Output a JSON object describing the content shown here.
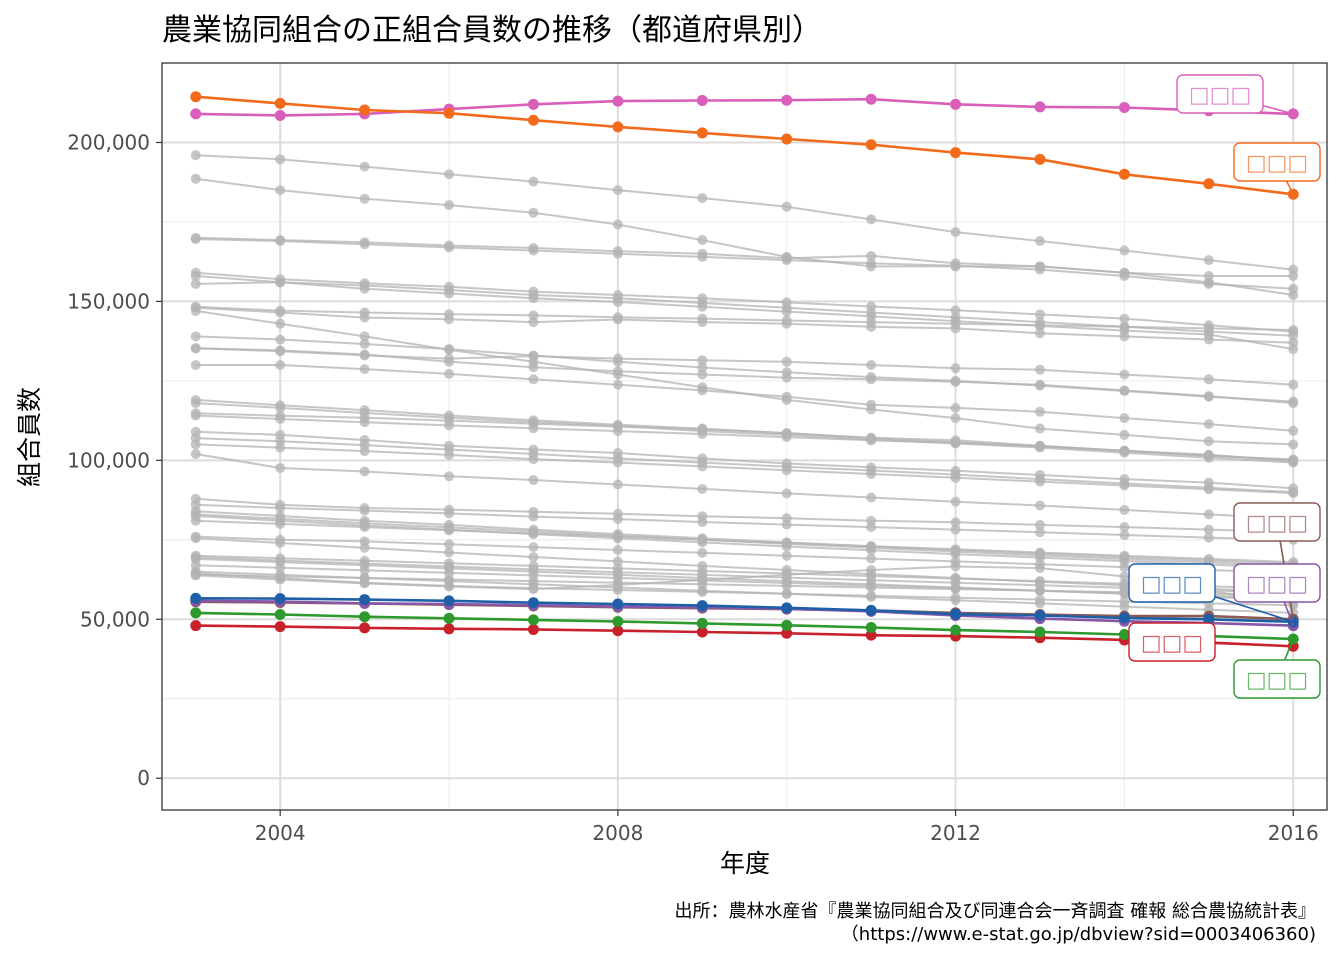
{
  "chart_data": {
    "type": "line",
    "title": "農業協同組合の正組合員数の推移（都道府県別）",
    "xlabel": "年度",
    "ylabel": "組合員数",
    "caption": [
      "出所：農林水産省『農業協同組合及び同連合会一斉調査 確報 総合農協統計表』",
      "（https://www.e-stat.go.jp/dbview?sid=0003406360)"
    ],
    "x": [
      2003,
      2004,
      2005,
      2006,
      2007,
      2008,
      2009,
      2010,
      2011,
      2012,
      2013,
      2014,
      2015,
      2016
    ],
    "xlim": [
      2002.6,
      2016.4
    ],
    "ylim": [
      -10000,
      225000
    ],
    "xticks": [
      {
        "value": 2004,
        "label": "2004"
      },
      {
        "value": 2008,
        "label": "2008"
      },
      {
        "value": 2012,
        "label": "2012"
      },
      {
        "value": 2016,
        "label": "2016"
      }
    ],
    "yticks": [
      {
        "value": 0,
        "label": "0"
      },
      {
        "value": 50000,
        "label": "50,000"
      },
      {
        "value": 100000,
        "label": "100,000"
      },
      {
        "value": 150000,
        "label": "150,000"
      },
      {
        "value": 200000,
        "label": "200,000"
      }
    ],
    "grid": true,
    "background_series_color": "#b3b3b3",
    "highlight_series": [
      {
        "color": "#d95fba",
        "label": "□□□",
        "values": [
          209000,
          208500,
          209000,
          210500,
          212000,
          213000,
          213200,
          213300,
          213600,
          212000,
          211200,
          211000,
          210000,
          209000
        ]
      },
      {
        "color": "#f26b1d",
        "label": "□□□",
        "values": [
          214400,
          212300,
          210200,
          209200,
          207000,
          204900,
          203000,
          201100,
          199300,
          196800,
          194700,
          190000,
          187000,
          183700
        ]
      },
      {
        "color": "#8b5a55",
        "label": "□□□",
        "values": [
          55500,
          55300,
          55000,
          54600,
          54200,
          53800,
          53500,
          53200,
          52800,
          52000,
          51500,
          51000,
          51000,
          50000
        ]
      },
      {
        "color": "#8856a7",
        "label": "□□□",
        "values": [
          55800,
          55600,
          55000,
          54800,
          54400,
          54000,
          53700,
          53300,
          52500,
          51200,
          50200,
          49400,
          48800,
          48000
        ]
      },
      {
        "color": "#1f5fa8",
        "label": "□□□",
        "values": [
          56600,
          56500,
          56200,
          55800,
          55200,
          54800,
          54300,
          53600,
          52800,
          51600,
          51200,
          50400,
          50000,
          49200
        ]
      },
      {
        "color": "#c9212b",
        "label": "□□□",
        "values": [
          48000,
          47700,
          47300,
          47000,
          46800,
          46400,
          46000,
          45600,
          45000,
          44700,
          44200,
          43500,
          42700,
          41500
        ]
      },
      {
        "color": "#2e9a2e",
        "label": "□□□",
        "values": [
          52000,
          51500,
          50800,
          50300,
          49800,
          49300,
          48700,
          48100,
          47400,
          46600,
          46000,
          45200,
          44700,
          43800
        ]
      }
    ],
    "background_series": [
      {
        "values": [
          196000,
          194700,
          192400,
          190000,
          187700,
          185000,
          182500,
          179800,
          175800,
          171800,
          169000,
          166000,
          163000,
          160000
        ]
      },
      {
        "values": [
          188600,
          185000,
          182300,
          180300,
          177900,
          174200,
          169300,
          164000,
          161000,
          161000,
          161000,
          159000,
          158000,
          158000
        ]
      },
      {
        "values": [
          170000,
          169300,
          168600,
          167600,
          166800,
          165800,
          165000,
          163600,
          164300,
          162000,
          161000,
          159000,
          156000,
          152000
        ]
      },
      {
        "values": [
          169600,
          169000,
          168000,
          167000,
          166000,
          165000,
          164000,
          163000,
          162000,
          161200,
          160000,
          158000,
          155500,
          154000
        ]
      },
      {
        "values": [
          159000,
          157000,
          155700,
          154600,
          153100,
          152000,
          151000,
          149700,
          148400,
          147200,
          145900,
          144600,
          142500,
          140500
        ]
      },
      {
        "values": [
          158000,
          156000,
          154000,
          152500,
          151000,
          149800,
          148300,
          146800,
          145300,
          143800,
          142300,
          140800,
          139600,
          135000
        ]
      },
      {
        "values": [
          155500,
          156000,
          155000,
          153600,
          152000,
          151000,
          149500,
          148000,
          146500,
          145000,
          143500,
          142000,
          140500,
          139200
        ]
      },
      {
        "values": [
          148000,
          146500,
          144900,
          144400,
          143500,
          144300,
          143500,
          143000,
          142000,
          141500,
          140000,
          139000,
          138000,
          137000
        ]
      },
      {
        "values": [
          147000,
          143000,
          139000,
          134800,
          131000,
          127000,
          123000,
          119000,
          116000,
          113300,
          110000,
          108000,
          106000,
          105000
        ]
      },
      {
        "values": [
          148300,
          147100,
          146500,
          146000,
          145600,
          145000,
          144600,
          144000,
          143500,
          143000,
          142500,
          142000,
          141500,
          141000
        ]
      },
      {
        "values": [
          139000,
          138000,
          136600,
          135000,
          133000,
          131000,
          129200,
          127700,
          126200,
          125000,
          123500,
          121800,
          120000,
          118500
        ]
      },
      {
        "values": [
          135300,
          134600,
          133300,
          131000,
          129300,
          128000,
          127000,
          126000,
          125500,
          124700,
          123800,
          122000,
          120200,
          118000
        ]
      },
      {
        "values": [
          135200,
          134300,
          133000,
          132000,
          132800,
          132000,
          131500,
          131000,
          130000,
          129000,
          128500,
          127000,
          125500,
          123800
        ]
      },
      {
        "values": [
          130000,
          130000,
          128700,
          127200,
          125500,
          123800,
          122000,
          120000,
          117500,
          116500,
          115300,
          113300,
          111400,
          109300
        ]
      },
      {
        "values": [
          119000,
          117300,
          115800,
          114100,
          112600,
          111200,
          110000,
          108500,
          107100,
          106300,
          104600,
          103000,
          101400,
          100300
        ]
      },
      {
        "values": [
          118000,
          116500,
          114900,
          113400,
          112000,
          110800,
          109200,
          108000,
          106500,
          105300,
          104000,
          102400,
          100800,
          99300
        ]
      },
      {
        "values": [
          114800,
          114000,
          113400,
          112500,
          111500,
          110600,
          109800,
          108600,
          107000,
          105700,
          104400,
          103000,
          101500,
          100000
        ]
      },
      {
        "values": [
          114100,
          113000,
          112000,
          111000,
          110100,
          109200,
          108300,
          107300,
          106300,
          105500,
          104500,
          103000,
          101800,
          99700
        ]
      },
      {
        "values": [
          109000,
          108000,
          106400,
          104600,
          103400,
          102300,
          100600,
          99000,
          97800,
          96700,
          95400,
          94100,
          93000,
          91200
        ]
      },
      {
        "values": [
          107000,
          106000,
          104800,
          103400,
          102000,
          100600,
          99300,
          98000,
          96800,
          95500,
          94100,
          92700,
          91400,
          90000
        ]
      },
      {
        "values": [
          105000,
          104000,
          102900,
          101700,
          100400,
          99300,
          98100,
          96900,
          95700,
          94500,
          93300,
          92100,
          90900,
          89700
        ]
      },
      {
        "values": [
          102000,
          97600,
          96500,
          95000,
          93800,
          92400,
          91000,
          89600,
          88300,
          87000,
          85800,
          84400,
          83000,
          81600
        ]
      },
      {
        "values": [
          87900,
          86000,
          85000,
          84500,
          83800,
          83200,
          82400,
          81800,
          81000,
          80500,
          79700,
          79000,
          78200,
          77400
        ]
      },
      {
        "values": [
          86000,
          85000,
          84200,
          83300,
          82300,
          81500,
          80600,
          79800,
          79000,
          78200,
          77400,
          76500,
          75700,
          75000
        ]
      },
      {
        "values": [
          84000,
          82500,
          81000,
          79700,
          78200,
          76800,
          75500,
          74200,
          73000,
          71800,
          70700,
          69600,
          68500,
          67500
        ]
      },
      {
        "values": [
          83000,
          81600,
          80200,
          78900,
          77600,
          76300,
          75000,
          73700,
          72500,
          71300,
          70100,
          69000,
          67900,
          66800
        ]
      },
      {
        "values": [
          82500,
          81000,
          79500,
          78200,
          76800,
          75500,
          74200,
          72900,
          71700,
          70500,
          69400,
          68300,
          67200,
          66200
        ]
      },
      {
        "values": [
          81000,
          80000,
          79000,
          78000,
          77000,
          76000,
          75000,
          74000,
          73000,
          72000,
          71000,
          70000,
          69000,
          68000
        ]
      },
      {
        "values": [
          76000,
          75000,
          74500,
          73600,
          72700,
          71800,
          70900,
          70000,
          69100,
          68200,
          67300,
          66400,
          65500,
          64600
        ]
      },
      {
        "values": [
          75500,
          74000,
          72500,
          71000,
          69600,
          68200,
          66800,
          65500,
          64200,
          63000,
          61800,
          60700,
          59600,
          58500
        ]
      },
      {
        "values": [
          70000,
          69200,
          68400,
          67600,
          66800,
          66000,
          65200,
          64400,
          63600,
          62800,
          62000,
          61200,
          60400,
          59600
        ]
      },
      {
        "values": [
          69500,
          68500,
          67500,
          66600,
          65700,
          64800,
          64000,
          63100,
          62300,
          61500,
          60700,
          59900,
          59100,
          58300
        ]
      },
      {
        "values": [
          69000,
          68000,
          67000,
          66000,
          65000,
          64000,
          63000,
          62000,
          61000,
          60000,
          59000,
          58000,
          57000,
          56000
        ]
      },
      {
        "values": [
          67000,
          66200,
          65400,
          64600,
          63800,
          63000,
          62200,
          61400,
          60600,
          59800,
          59000,
          58200,
          57400,
          56600
        ]
      },
      {
        "values": [
          64000,
          63500,
          63000,
          62500,
          62000,
          61500,
          61000,
          60500,
          60000,
          59500,
          59000,
          58500,
          58000,
          57500
        ]
      },
      {
        "values": [
          65000,
          64000,
          63000,
          62000,
          61000,
          60000,
          59000,
          58000,
          57000,
          56000,
          55000,
          54000,
          53000,
          52000
        ]
      },
      {
        "values": [
          64500,
          63000,
          61500,
          60500,
          59800,
          59200,
          58600,
          58000,
          57400,
          56800,
          56200,
          55600,
          55000,
          54400
        ]
      },
      {
        "values": [
          63800,
          62500,
          61300,
          60300,
          59500,
          60800,
          62400,
          64000,
          65500,
          66600,
          66100,
          63500,
          59000,
          55000
        ]
      }
    ]
  }
}
